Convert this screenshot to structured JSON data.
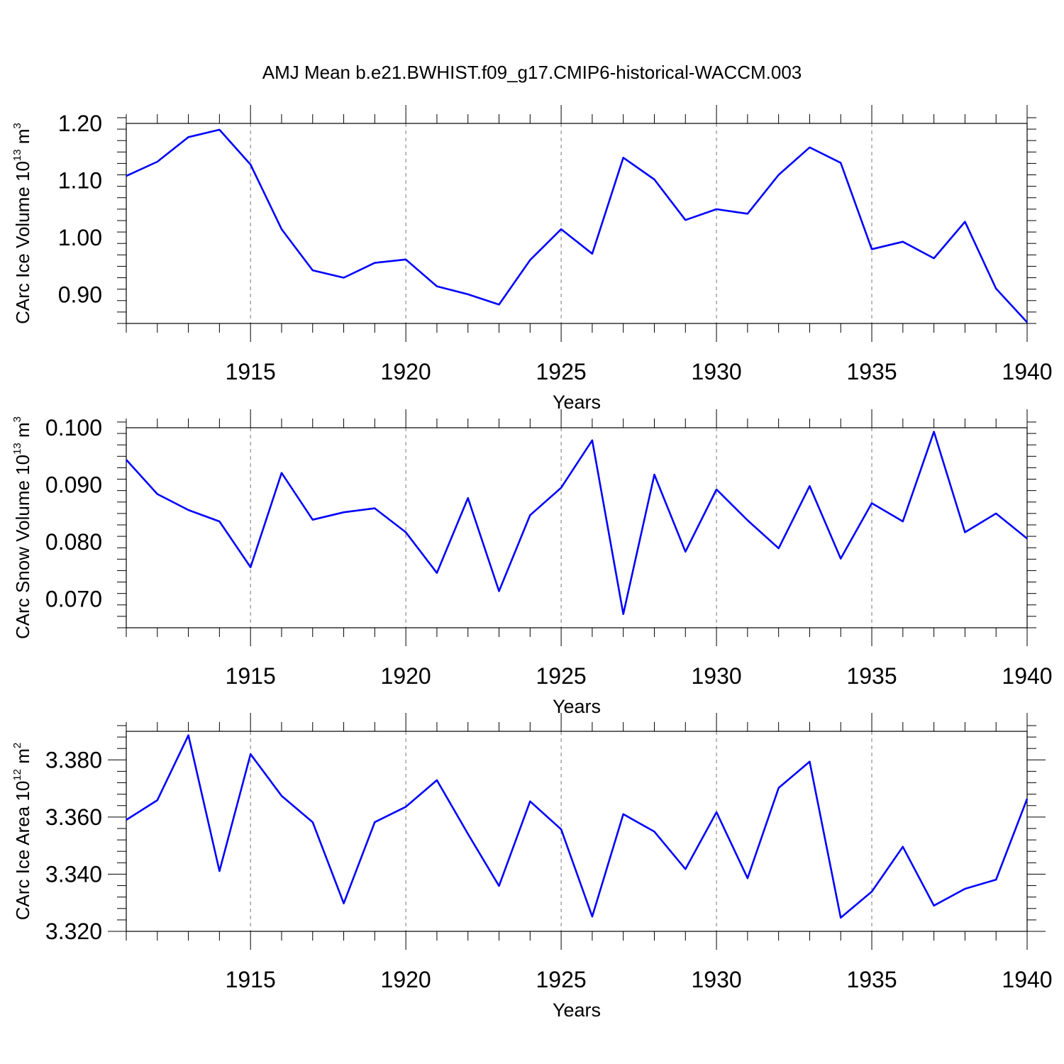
{
  "title": "AMJ Mean b.e21.BWHIST.f09_g17.CMIP6-historical-WACCM.003",
  "chart_data": [
    {
      "type": "line",
      "xlabel": "Years",
      "ylabel": {
        "prefix": "CArc Ice Volume 10",
        "exp": "13",
        "unit": " m",
        "unit_exp": "3"
      },
      "xlim": [
        1911,
        1940
      ],
      "ylim": [
        0.85,
        1.2
      ],
      "yticks": [
        "0.90",
        "1.00",
        "1.10",
        "1.20"
      ],
      "ytick_values": [
        0.9,
        1.0,
        1.1,
        1.2
      ],
      "xticks": [
        "1915",
        "1920",
        "1925",
        "1930",
        "1935",
        "1940"
      ],
      "xtick_values": [
        1915,
        1920,
        1925,
        1930,
        1935,
        1940
      ],
      "grid": "vertical dashed at major x ticks",
      "color": "#0000ff",
      "x": [
        1911,
        1912,
        1913,
        1914,
        1915,
        1916,
        1917,
        1918,
        1919,
        1920,
        1921,
        1922,
        1923,
        1924,
        1925,
        1926,
        1927,
        1928,
        1929,
        1930,
        1931,
        1932,
        1933,
        1934,
        1935,
        1936,
        1937,
        1938,
        1939,
        1940
      ],
      "y": [
        1.108,
        1.133,
        1.176,
        1.189,
        1.128,
        1.015,
        0.943,
        0.93,
        0.956,
        0.962,
        0.915,
        0.901,
        0.883,
        0.961,
        1.015,
        0.972,
        1.14,
        1.102,
        1.031,
        1.05,
        1.042,
        1.11,
        1.158,
        1.131,
        0.98,
        0.993,
        0.964,
        1.028,
        0.911,
        0.852
      ]
    },
    {
      "type": "line",
      "xlabel": "Years",
      "ylabel": {
        "prefix": "CArc Snow Volume 10",
        "exp": "13",
        "unit": " m",
        "unit_exp": "3"
      },
      "xlim": [
        1911,
        1940
      ],
      "ylim": [
        0.065,
        0.1
      ],
      "yticks": [
        "0.070",
        "0.080",
        "0.090",
        "0.100"
      ],
      "ytick_values": [
        0.07,
        0.08,
        0.09,
        0.1
      ],
      "xticks": [
        "1915",
        "1920",
        "1925",
        "1930",
        "1935",
        "1940"
      ],
      "xtick_values": [
        1915,
        1920,
        1925,
        1930,
        1935,
        1940
      ],
      "grid": "vertical dashed at major x ticks",
      "color": "#0000ff",
      "x": [
        1911,
        1912,
        1913,
        1914,
        1915,
        1916,
        1917,
        1918,
        1919,
        1920,
        1921,
        1922,
        1923,
        1924,
        1925,
        1926,
        1927,
        1928,
        1929,
        1930,
        1931,
        1932,
        1933,
        1934,
        1935,
        1936,
        1937,
        1938,
        1939,
        1940
      ],
      "y": [
        0.0944,
        0.0884,
        0.0856,
        0.0836,
        0.0756,
        0.0921,
        0.0839,
        0.0852,
        0.0859,
        0.0817,
        0.0746,
        0.0877,
        0.0714,
        0.0847,
        0.0895,
        0.0978,
        0.0674,
        0.0918,
        0.0783,
        0.0892,
        0.0838,
        0.0789,
        0.0898,
        0.0771,
        0.0868,
        0.0836,
        0.0993,
        0.0817,
        0.085,
        0.0806
      ]
    },
    {
      "type": "line",
      "xlabel": "Years",
      "ylabel": {
        "prefix": "CArc Ice Area 10",
        "exp": "12",
        "unit": " m",
        "unit_exp": "2"
      },
      "xlim": [
        1911,
        1940
      ],
      "ylim": [
        3.32,
        3.39
      ],
      "yticks": [
        "3.320",
        "3.340",
        "3.360",
        "3.380"
      ],
      "ytick_values": [
        3.32,
        3.34,
        3.36,
        3.38
      ],
      "xticks": [
        "1915",
        "1920",
        "1925",
        "1930",
        "1935",
        "1940"
      ],
      "xtick_values": [
        1915,
        1920,
        1925,
        1930,
        1935,
        1940
      ],
      "grid": "vertical dashed at major x ticks",
      "color": "#0000ff",
      "x": [
        1911,
        1912,
        1913,
        1914,
        1915,
        1916,
        1917,
        1918,
        1919,
        1920,
        1921,
        1922,
        1923,
        1924,
        1925,
        1926,
        1927,
        1928,
        1929,
        1930,
        1931,
        1932,
        1933,
        1934,
        1935,
        1936,
        1937,
        1938,
        1939,
        1940
      ],
      "y": [
        3.359,
        3.3659,
        3.3886,
        3.3411,
        3.382,
        3.3674,
        3.3582,
        3.3298,
        3.3582,
        3.3636,
        3.3729,
        3.3541,
        3.3359,
        3.3655,
        3.3557,
        3.3252,
        3.361,
        3.3549,
        3.3418,
        3.3617,
        3.3386,
        3.3702,
        3.3794,
        3.3248,
        3.3339,
        3.3496,
        3.329,
        3.3349,
        3.3381,
        3.3664
      ]
    }
  ]
}
